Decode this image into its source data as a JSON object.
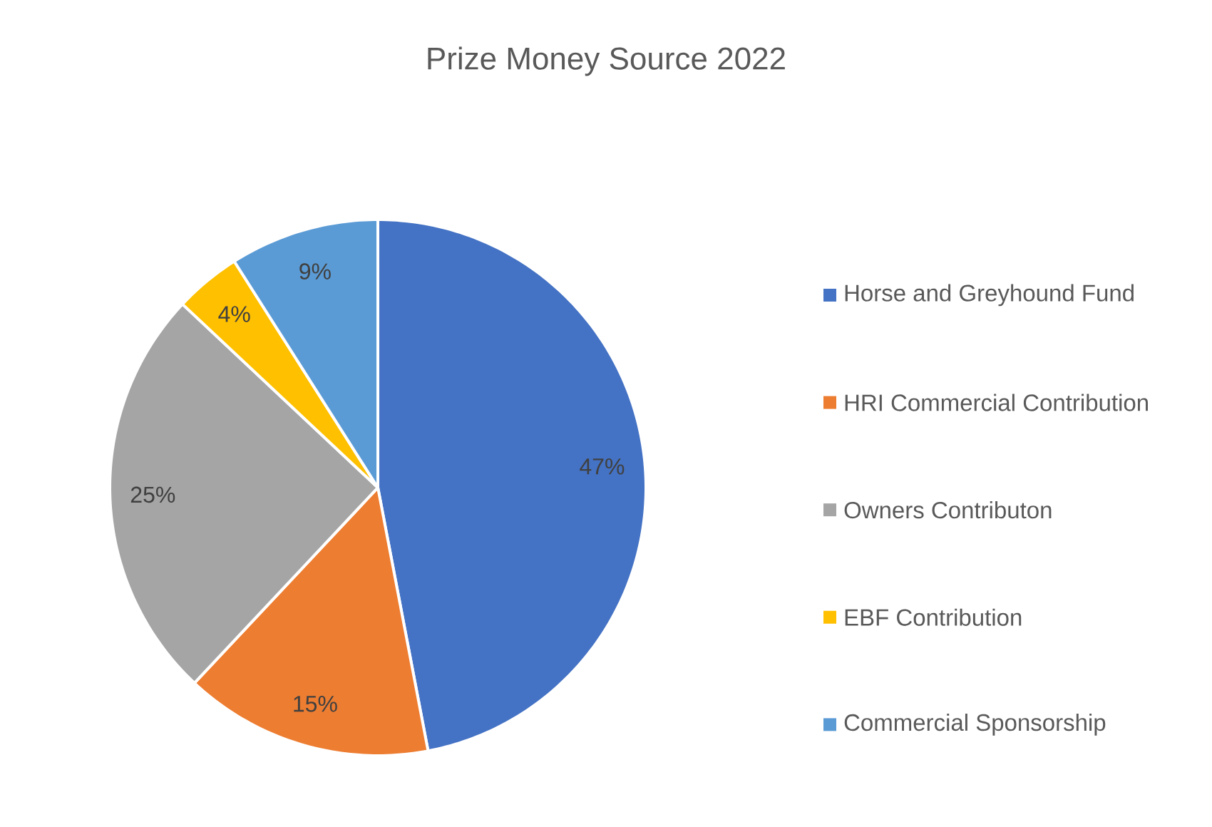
{
  "chart_data": {
    "type": "pie",
    "title": "Prize Money Source 2022",
    "categories": [
      "Horse and Greyhound Fund",
      "HRI Commercial Contribution",
      "Owners Contributon",
      "EBF Contribution",
      "Commercial Sponsorship"
    ],
    "values": [
      47,
      15,
      25,
      4,
      9
    ],
    "colors": [
      "#4472c4",
      "#ed7d31",
      "#a5a5a5",
      "#ffc000",
      "#5b9bd5"
    ],
    "value_labels": [
      "47%",
      "15%",
      "25%",
      "4%",
      "9%"
    ],
    "legend": "right"
  }
}
